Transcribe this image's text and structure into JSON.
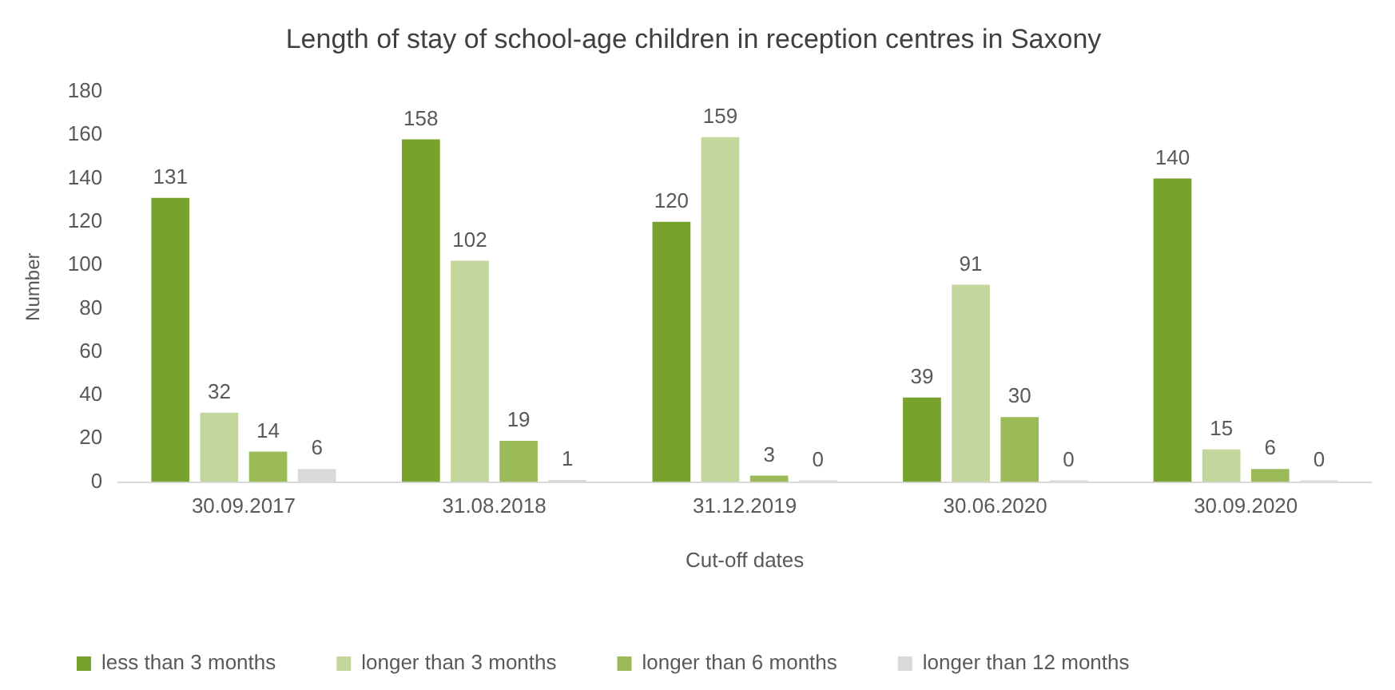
{
  "chart_data": {
    "type": "bar",
    "title": "Length of stay of school-age children in reception centres in Saxony",
    "xlabel": "Cut-off dates",
    "ylabel": "Number",
    "categories": [
      "30.09.2017",
      "31.08.2018",
      "31.12.2019",
      "30.06.2020",
      "30.09.2020"
    ],
    "series": [
      {
        "name": "less than 3 months",
        "color": "#77a22c",
        "values": [
          131,
          158,
          120,
          39,
          140
        ]
      },
      {
        "name": "longer than 3 months",
        "color": "#c3d69c",
        "values": [
          32,
          102,
          159,
          91,
          15
        ]
      },
      {
        "name": "longer than 6 months",
        "color": "#9bbb59",
        "values": [
          14,
          19,
          3,
          30,
          6
        ]
      },
      {
        "name": "longer than 12 months",
        "color": "#d9d9d9",
        "values": [
          6,
          1,
          0,
          0,
          0
        ]
      }
    ],
    "ylim": [
      0,
      180
    ],
    "yticks": [
      0,
      20,
      40,
      60,
      80,
      100,
      120,
      140,
      160,
      180
    ],
    "grid": false,
    "legend": "bottom",
    "data_labels": true
  }
}
